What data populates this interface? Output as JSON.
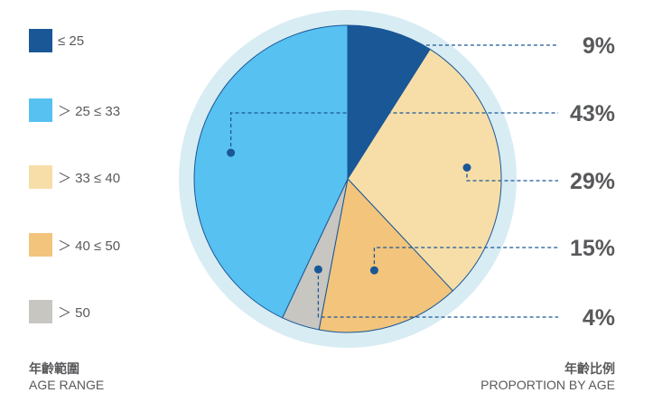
{
  "chart_data": {
    "type": "pie",
    "series_label": "年齡比例",
    "slices": [
      {
        "label": "≤  25",
        "value": 9,
        "display": "9%",
        "color": "#1a5796"
      },
      {
        "label": "＞ 25  ≤ 33",
        "value": 43,
        "display": "43%",
        "color": "#57c1f1"
      },
      {
        "label": "＞ 33  ≤ 40",
        "value": 29,
        "display": "29%",
        "color": "#f7dea8"
      },
      {
        "label": "＞ 40  ≤ 50",
        "value": 15,
        "display": "15%",
        "color": "#f2c47c"
      },
      {
        "label": "＞ 50",
        "value": 4,
        "display": "4%",
        "color": "#c8c6c1"
      }
    ],
    "legend_placement": "left"
  },
  "footer": {
    "left_cn": "年齡範圍",
    "left_en": "AGE RANGE",
    "right_cn": "年齡比例",
    "right_en": "PROPORTION BY AGE"
  },
  "colors": {
    "ring": "#d8ecf3",
    "leader": "#1a5796",
    "slice_stroke": "#1a5796",
    "text": "#58595b"
  }
}
